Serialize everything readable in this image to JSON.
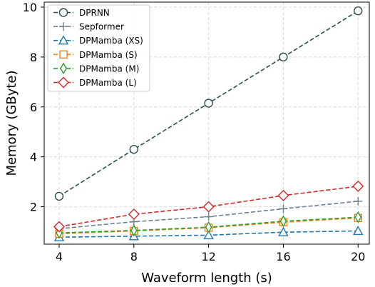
{
  "chart_data": {
    "type": "line",
    "xlabel": "Waveform length (s)",
    "ylabel": "Memory (GByte)",
    "x": [
      4,
      8,
      12,
      16,
      20
    ],
    "xlim": [
      3.2,
      20.6
    ],
    "ylim": [
      0.5,
      10.2
    ],
    "xticks": [
      4,
      8,
      12,
      16,
      20
    ],
    "yticks": [
      2,
      4,
      6,
      8,
      10
    ],
    "grid": true,
    "legend_position": "top-left",
    "series": [
      {
        "name": "DPRNN",
        "values": [
          2.42,
          4.3,
          6.15,
          8.0,
          9.85
        ],
        "color": "#2f4f4f",
        "marker": "circle",
        "fill": "#ffffff"
      },
      {
        "name": "Sepformer",
        "values": [
          1.12,
          1.4,
          1.6,
          1.92,
          2.22
        ],
        "color": "#708090",
        "marker": "plus",
        "fill": "none"
      },
      {
        "name": "DPMamba (XS)",
        "values": [
          0.78,
          0.82,
          0.86,
          0.98,
          1.03
        ],
        "color": "#1f77b4",
        "marker": "triangle",
        "fill": "#ffffff"
      },
      {
        "name": "DPMamba (S)",
        "values": [
          0.92,
          1.03,
          1.16,
          1.38,
          1.55
        ],
        "color": "#ff7f0e",
        "marker": "square",
        "fill": "#ffffff"
      },
      {
        "name": "DPMamba (M)",
        "values": [
          0.95,
          1.05,
          1.18,
          1.42,
          1.58
        ],
        "color": "#2ca02c",
        "marker": "diamond-thin",
        "fill": "#ffffff"
      },
      {
        "name": "DPMamba (L)",
        "values": [
          1.2,
          1.7,
          2.0,
          2.45,
          2.82
        ],
        "color": "#d62728",
        "marker": "diamond",
        "fill": "#ffffff"
      }
    ]
  }
}
